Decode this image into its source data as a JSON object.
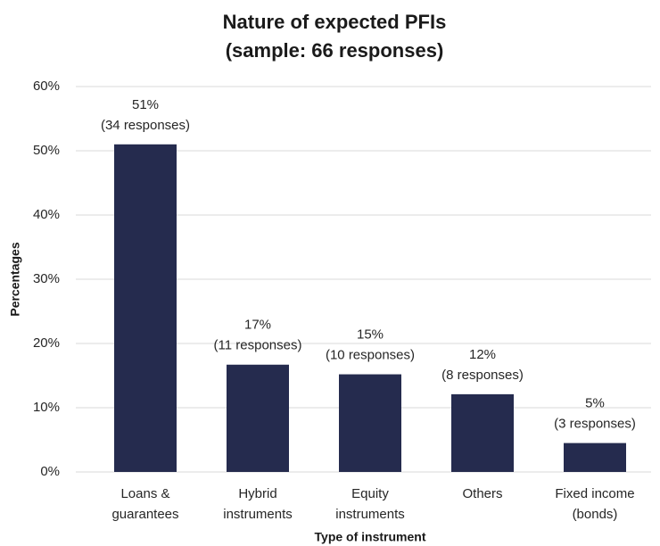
{
  "chart_data": {
    "type": "bar",
    "title": [
      "Nature of expected PFIs",
      "(sample: 66 responses)"
    ],
    "x_label": "Type of instrument",
    "y_label": "Percentages",
    "categories": [
      [
        "Loans &",
        "guarantees"
      ],
      [
        "Hybrid",
        "instruments"
      ],
      [
        "Equity",
        "instruments"
      ],
      [
        "Others"
      ],
      [
        "Fixed income",
        "(bonds)"
      ]
    ],
    "values": [
      51,
      16.7,
      15.2,
      12.1,
      4.5
    ],
    "value_labels": [
      [
        "51%",
        "(34 responses)"
      ],
      [
        "17%",
        "(11 responses)"
      ],
      [
        "15%",
        "(10 responses)"
      ],
      [
        "12%",
        "(8 responses)"
      ],
      [
        "5%",
        "(3 responses)"
      ]
    ],
    "color": "#252b4e",
    "ylim": [
      0,
      60
    ],
    "yticks": [
      {
        "value": 0,
        "label": "0%"
      },
      {
        "value": 10,
        "label": "10%"
      },
      {
        "value": 20,
        "label": "20%"
      },
      {
        "value": 30,
        "label": "30%"
      },
      {
        "value": 40,
        "label": "40%"
      },
      {
        "value": 50,
        "label": "50%"
      },
      {
        "value": 60,
        "label": "60%"
      }
    ],
    "grid": true
  }
}
